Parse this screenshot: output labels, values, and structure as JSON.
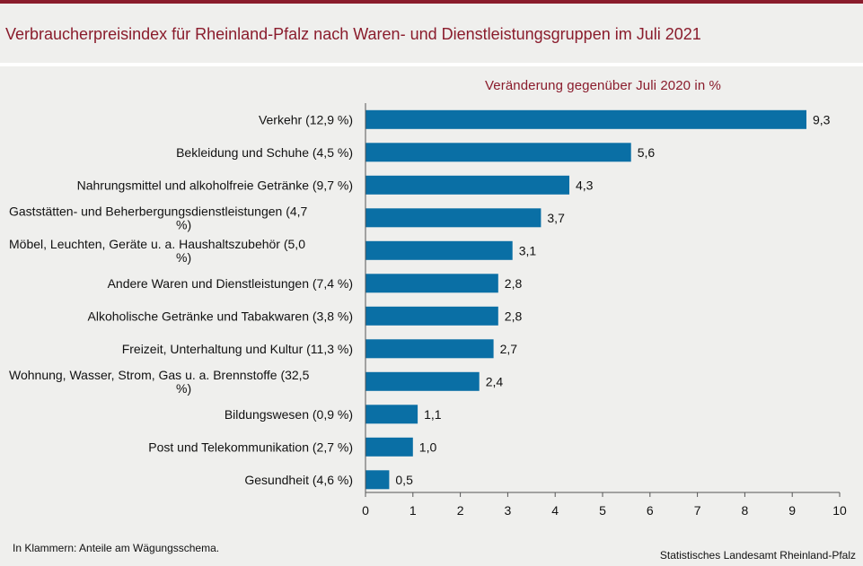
{
  "title": "Verbraucherpreisindex für Rheinland-Pfalz nach Waren- und Dienstleistungsgruppen im Juli 2021",
  "footnote": "In Klammern: Anteile am Wägungsschema.",
  "source": "Statistisches Landesamt Rheinland-Pfalz",
  "colors": {
    "bar": "#0a6fa5",
    "accent": "#8a1c2c",
    "background": "#efefed"
  },
  "chart_data": {
    "type": "bar",
    "orientation": "horizontal",
    "title": "Veränderung gegenüber Juli 2020 in %",
    "categories": [
      "Verkehr (12,9 %)",
      "Bekleidung und Schuhe (4,5 %)",
      "Nahrungsmittel und alkoholfreie Getränke (9,7 %)",
      "Gaststätten- und Beherbergungsdienstleistungen (4,7 %)",
      "Möbel, Leuchten, Geräte u. a. Haushaltszubehör  (5,0 %)",
      "Andere Waren und Dienstleistungen (7,4 %)",
      "Alkoholische Getränke und Tabakwaren (3,8 %)",
      "Freizeit, Unterhaltung und Kultur (11,3 %)",
      "Wohnung, Wasser, Strom, Gas u. a. Brennstoffe (32,5 %)",
      "Bildungswesen (0,9 %)",
      "Post und Telekommunikation (2,7 %)",
      "Gesundheit (4,6 %)"
    ],
    "category_lines": [
      [
        "Verkehr (12,9 %)"
      ],
      [
        "Bekleidung und Schuhe (4,5 %)"
      ],
      [
        "Nahrungsmittel und alkoholfreie Getränke (9,7 %)"
      ],
      [
        "Gaststätten- und Beherbergungsdienstleistungen (4,7",
        "%)"
      ],
      [
        "Möbel, Leuchten, Geräte u. a. Haushaltszubehör  (5,0",
        "%)"
      ],
      [
        "Andere Waren und Dienstleistungen (7,4 %)"
      ],
      [
        "Alkoholische Getränke und Tabakwaren (3,8 %)"
      ],
      [
        "Freizeit, Unterhaltung und Kultur (11,3 %)"
      ],
      [
        "Wohnung, Wasser, Strom, Gas u. a. Brennstoffe (32,5",
        "%)"
      ],
      [
        "Bildungswesen (0,9 %)"
      ],
      [
        "Post und Telekommunikation (2,7 %)"
      ],
      [
        "Gesundheit (4,6 %)"
      ]
    ],
    "values": [
      9.3,
      5.6,
      4.3,
      3.7,
      3.1,
      2.8,
      2.8,
      2.7,
      2.4,
      1.1,
      1.0,
      0.5
    ],
    "value_labels": [
      "9,3",
      "5,6",
      "4,3",
      "3,7",
      "3,1",
      "2,8",
      "2,8",
      "2,7",
      "2,4",
      "1,1",
      "1,0",
      "0,5"
    ],
    "xlim": [
      0,
      10
    ],
    "xticks": [
      "0",
      "1",
      "2",
      "3",
      "4",
      "5",
      "6",
      "7",
      "8",
      "9",
      "10"
    ],
    "grid": false
  }
}
